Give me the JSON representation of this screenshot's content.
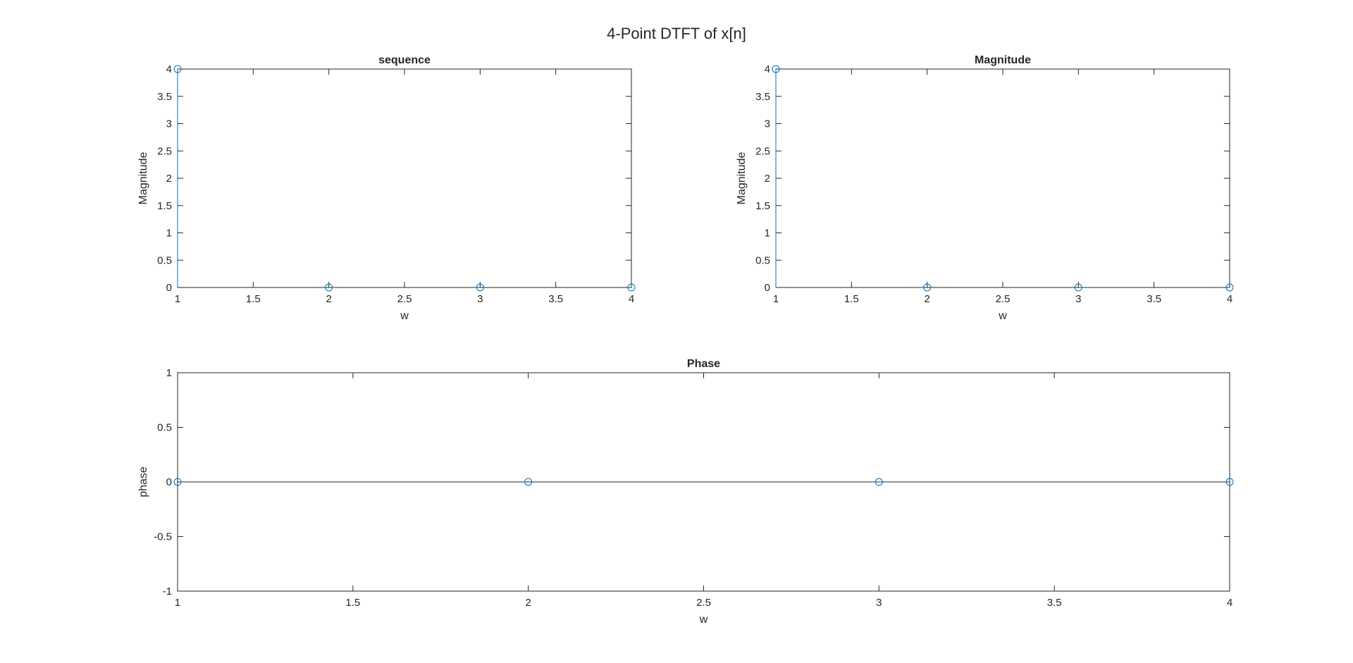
{
  "figure": {
    "title": "4-Point DTFT of x[n]",
    "stem_color": "#0072BD",
    "axis_color": "#262626"
  },
  "chart_data": [
    {
      "type": "scatter",
      "style": "stem",
      "title": "sequence",
      "xlabel": "w",
      "ylabel": "Magnitude",
      "x": [
        1,
        2,
        3,
        4
      ],
      "y": [
        4,
        0,
        0,
        0
      ],
      "xlim": [
        1,
        4
      ],
      "ylim": [
        0,
        4
      ],
      "xticks": [
        1,
        1.5,
        2,
        2.5,
        3,
        3.5,
        4
      ],
      "yticks": [
        0,
        0.5,
        1,
        1.5,
        2,
        2.5,
        3,
        3.5,
        4
      ],
      "xtick_labels": [
        "1",
        "1.5",
        "2",
        "2.5",
        "3",
        "3.5",
        "4"
      ],
      "ytick_labels": [
        "0",
        "0.5",
        "1",
        "1.5",
        "2",
        "2.5",
        "3",
        "3.5",
        "4"
      ],
      "grid": false
    },
    {
      "type": "scatter",
      "style": "stem",
      "title": "Magnitude",
      "xlabel": "w",
      "ylabel": "Magnitude",
      "x": [
        1,
        2,
        3,
        4
      ],
      "y": [
        4,
        0,
        0,
        0
      ],
      "xlim": [
        1,
        4
      ],
      "ylim": [
        0,
        4
      ],
      "xticks": [
        1,
        1.5,
        2,
        2.5,
        3,
        3.5,
        4
      ],
      "yticks": [
        0,
        0.5,
        1,
        1.5,
        2,
        2.5,
        3,
        3.5,
        4
      ],
      "xtick_labels": [
        "1",
        "1.5",
        "2",
        "2.5",
        "3",
        "3.5",
        "4"
      ],
      "ytick_labels": [
        "0",
        "0.5",
        "1",
        "1.5",
        "2",
        "2.5",
        "3",
        "3.5",
        "4"
      ],
      "grid": false
    },
    {
      "type": "scatter",
      "style": "stem",
      "title": "Phase",
      "xlabel": "w",
      "ylabel": "phase",
      "x": [
        1,
        2,
        3,
        4
      ],
      "y": [
        0,
        0,
        0,
        0
      ],
      "xlim": [
        1,
        4
      ],
      "ylim": [
        -1,
        1
      ],
      "xticks": [
        1,
        1.5,
        2,
        2.5,
        3,
        3.5,
        4
      ],
      "yticks": [
        -1,
        -0.5,
        0,
        0.5,
        1
      ],
      "xtick_labels": [
        "1",
        "1.5",
        "2",
        "2.5",
        "3",
        "3.5",
        "4"
      ],
      "ytick_labels": [
        "-1",
        "-0.5",
        "0",
        "0.5",
        "1"
      ],
      "grid": false
    }
  ]
}
